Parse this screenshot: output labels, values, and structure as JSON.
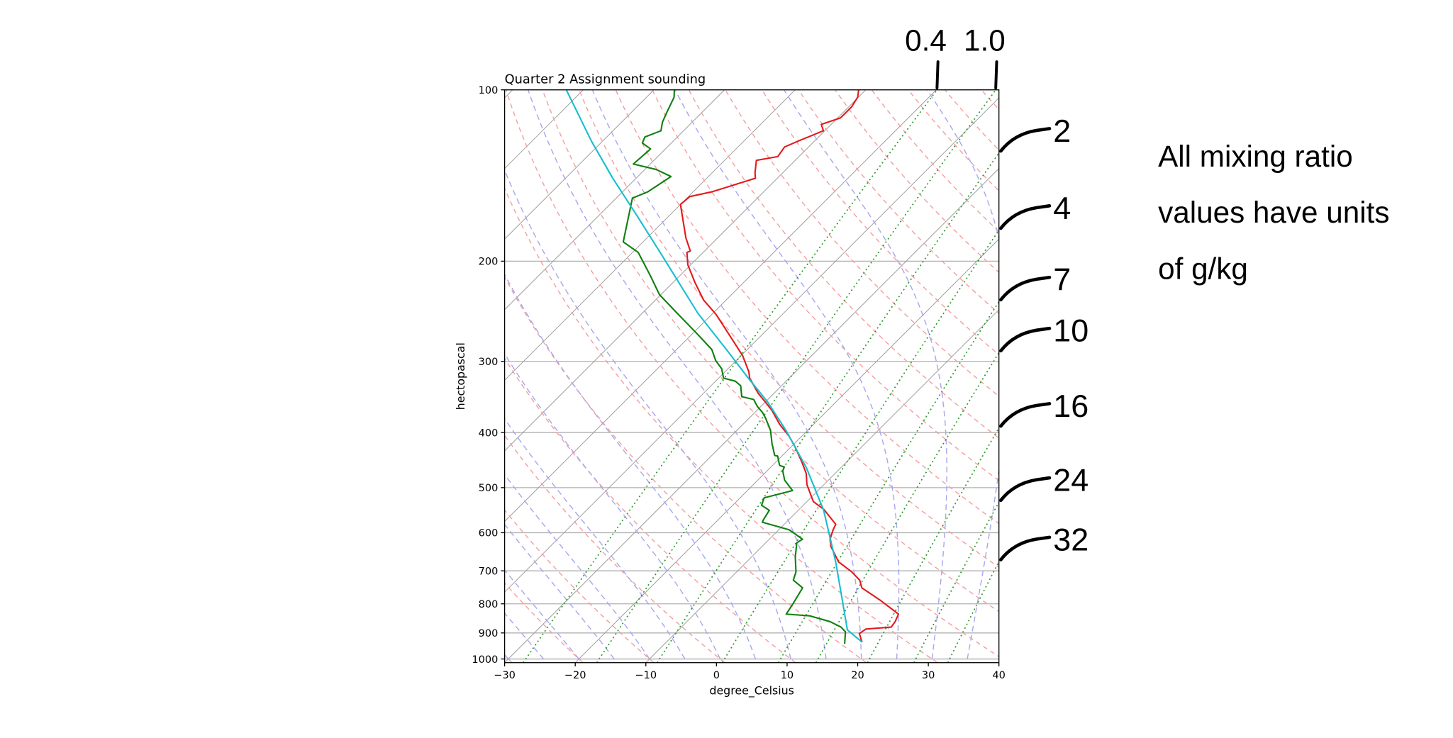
{
  "chart_data": {
    "type": "skewt",
    "title": "Quarter 2 Assignment sounding",
    "x_label": "degree_Celsius",
    "y_label": "hectopascal",
    "xlim": [
      -30,
      40
    ],
    "xticks": [
      {
        "value": -30,
        "label": "−30"
      },
      {
        "value": -20,
        "label": "−20"
      },
      {
        "value": -10,
        "label": "−10"
      },
      0,
      10,
      20,
      30,
      40
    ],
    "ylim": [
      1015,
      100
    ],
    "yticks": [
      100,
      200,
      300,
      400,
      500,
      600,
      700,
      800,
      900,
      1000
    ],
    "log_y": true,
    "grid": true,
    "series": [
      {
        "color": "#e31a1c",
        "pressure": [
          934,
          902,
          886,
          879,
          860,
          834,
          788,
          750,
          727,
          703,
          675,
          635,
          616,
          593,
          580,
          546,
          529,
          494,
          472,
          451,
          425,
          406,
          387,
          365,
          341,
          321,
          313,
          293,
          270,
          248,
          234,
          218,
          203,
          193,
          192,
          182,
          159,
          154,
          151,
          143,
          140,
          133,
          131,
          126,
          123,
          118,
          115,
          112,
          107,
          103,
          100
        ],
        "temperature": [
          17.7,
          16.1,
          16.4,
          19.7,
          19.5,
          18.9,
          14.3,
          10.0,
          8.6,
          6.3,
          3.0,
          -0.2,
          -1.4,
          -2.3,
          -2.7,
          -6.5,
          -9.1,
          -12.4,
          -14.1,
          -16.3,
          -19.3,
          -21.8,
          -24.8,
          -28.0,
          -32.3,
          -35.6,
          -36.6,
          -39.8,
          -44.5,
          -49.4,
          -53.2,
          -56.9,
          -60.4,
          -62.3,
          -62.0,
          -64.5,
          -70.0,
          -69.8,
          -67.3,
          -63.1,
          -63.9,
          -65.5,
          -63.0,
          -63.4,
          -62.3,
          -60.2,
          -61.4,
          -59.6,
          -59.6,
          -60.1,
          -61.0
        ]
      },
      {
        "color": "#108010",
        "pressure": [
          941,
          896,
          879,
          860,
          840,
          834,
          800,
          750,
          727,
          703,
          662,
          625,
          616,
          593,
          575,
          569,
          548,
          537,
          521,
          506,
          485,
          467,
          460,
          457,
          440,
          439,
          418,
          397,
          378,
          369,
          360,
          350,
          346,
          331,
          325,
          321,
          309,
          299,
          286,
          268,
          246,
          229,
          212,
          193,
          185,
          155,
          151,
          142,
          138,
          135,
          127,
          124,
          121,
          118,
          114,
          110,
          103,
          100
        ],
        "temperature": [
          15.5,
          13.9,
          12.6,
          10.3,
          6.6,
          3.0,
          2.5,
          1.6,
          -0.8,
          -1.6,
          -3.8,
          -5.6,
          -5.3,
          -8.5,
          -13.4,
          -13.6,
          -14.1,
          -15.9,
          -16.6,
          -13.6,
          -16.2,
          -17.8,
          -18.1,
          -19.0,
          -20.6,
          -21.1,
          -23.2,
          -25.2,
          -27.6,
          -28.9,
          -30.5,
          -32.0,
          -34.1,
          -35.8,
          -37.2,
          -39.3,
          -40.9,
          -42.9,
          -45.0,
          -49.4,
          -55.3,
          -60.2,
          -64.2,
          -69.2,
          -72.8,
          -77.7,
          -76.4,
          -75.3,
          -78.4,
          -82.4,
          -82.1,
          -84.1,
          -84.6,
          -83.2,
          -84.2,
          -84.9,
          -86.1,
          -87.1
        ]
      },
      {
        "color": "#17becf",
        "pressure": [
          934,
          889,
          785,
          675,
          548,
          462,
          397,
          354,
          322,
          288,
          247,
          193,
          166,
          143,
          123,
          100
        ],
        "temperature": [
          17.7,
          13.9,
          8.8,
          2.6,
          -6.4,
          -14.8,
          -23.0,
          -29.6,
          -35.6,
          -42.5,
          -52.1,
          -66.1,
          -74.7,
          -83.3,
          -91.6,
          -102.4
        ]
      }
    ],
    "mixing_ratios": [
      0.4,
      {
        "value": 1,
        "label": "1.0"
      },
      2,
      4,
      7,
      10,
      16,
      24,
      32
    ],
    "note": [
      "All mixing ratio",
      "values have units",
      "of g/kg"
    ]
  }
}
